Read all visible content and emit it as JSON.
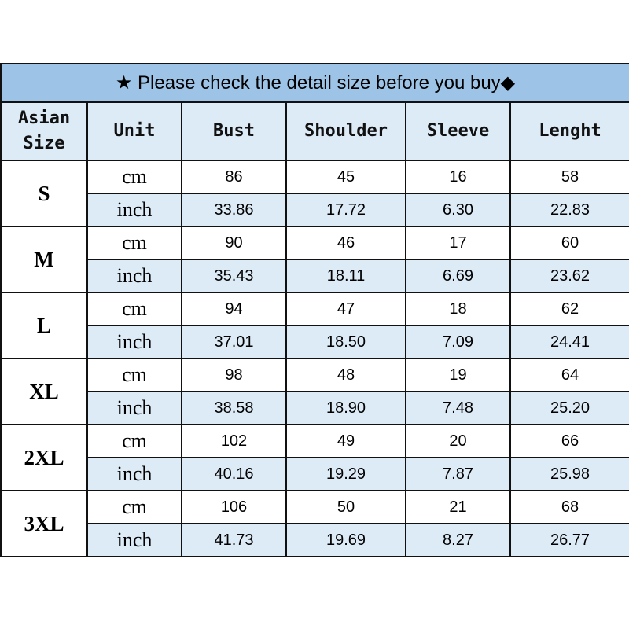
{
  "title": {
    "star_icon": "★",
    "text": "Please check the detail size before you buy",
    "diamond_icon": "◆"
  },
  "headers": [
    "Asian Size",
    "Unit",
    "Bust",
    "Shoulder",
    "Sleeve",
    "Lenght"
  ],
  "colors": {
    "title_bg": "#9DC3E6",
    "light_cell_bg": "#DDEBF7",
    "border": "#111111"
  },
  "sizes": [
    {
      "size": "S",
      "cm": {
        "unit": "cm",
        "values": [
          "86",
          "45",
          "16",
          "58"
        ]
      },
      "inch": {
        "unit": "inch",
        "values": [
          "33.86",
          "17.72",
          "6.30",
          "22.83"
        ]
      }
    },
    {
      "size": "M",
      "cm": {
        "unit": "cm",
        "values": [
          "90",
          "46",
          "17",
          "60"
        ]
      },
      "inch": {
        "unit": "inch",
        "values": [
          "35.43",
          "18.11",
          "6.69",
          "23.62"
        ]
      }
    },
    {
      "size": "L",
      "cm": {
        "unit": "cm",
        "values": [
          "94",
          "47",
          "18",
          "62"
        ]
      },
      "inch": {
        "unit": "inch",
        "values": [
          "37.01",
          "18.50",
          "7.09",
          "24.41"
        ]
      }
    },
    {
      "size": "XL",
      "cm": {
        "unit": "cm",
        "values": [
          "98",
          "48",
          "19",
          "64"
        ]
      },
      "inch": {
        "unit": "inch",
        "values": [
          "38.58",
          "18.90",
          "7.48",
          "25.20"
        ]
      }
    },
    {
      "size": "2XL",
      "cm": {
        "unit": "cm",
        "values": [
          "102",
          "49",
          "20",
          "66"
        ]
      },
      "inch": {
        "unit": "inch",
        "values": [
          "40.16",
          "19.29",
          "7.87",
          "25.98"
        ]
      }
    },
    {
      "size": "3XL",
      "cm": {
        "unit": "cm",
        "values": [
          "106",
          "50",
          "21",
          "68"
        ]
      },
      "inch": {
        "unit": "inch",
        "values": [
          "41.73",
          "19.69",
          "8.27",
          "26.77"
        ]
      }
    }
  ]
}
